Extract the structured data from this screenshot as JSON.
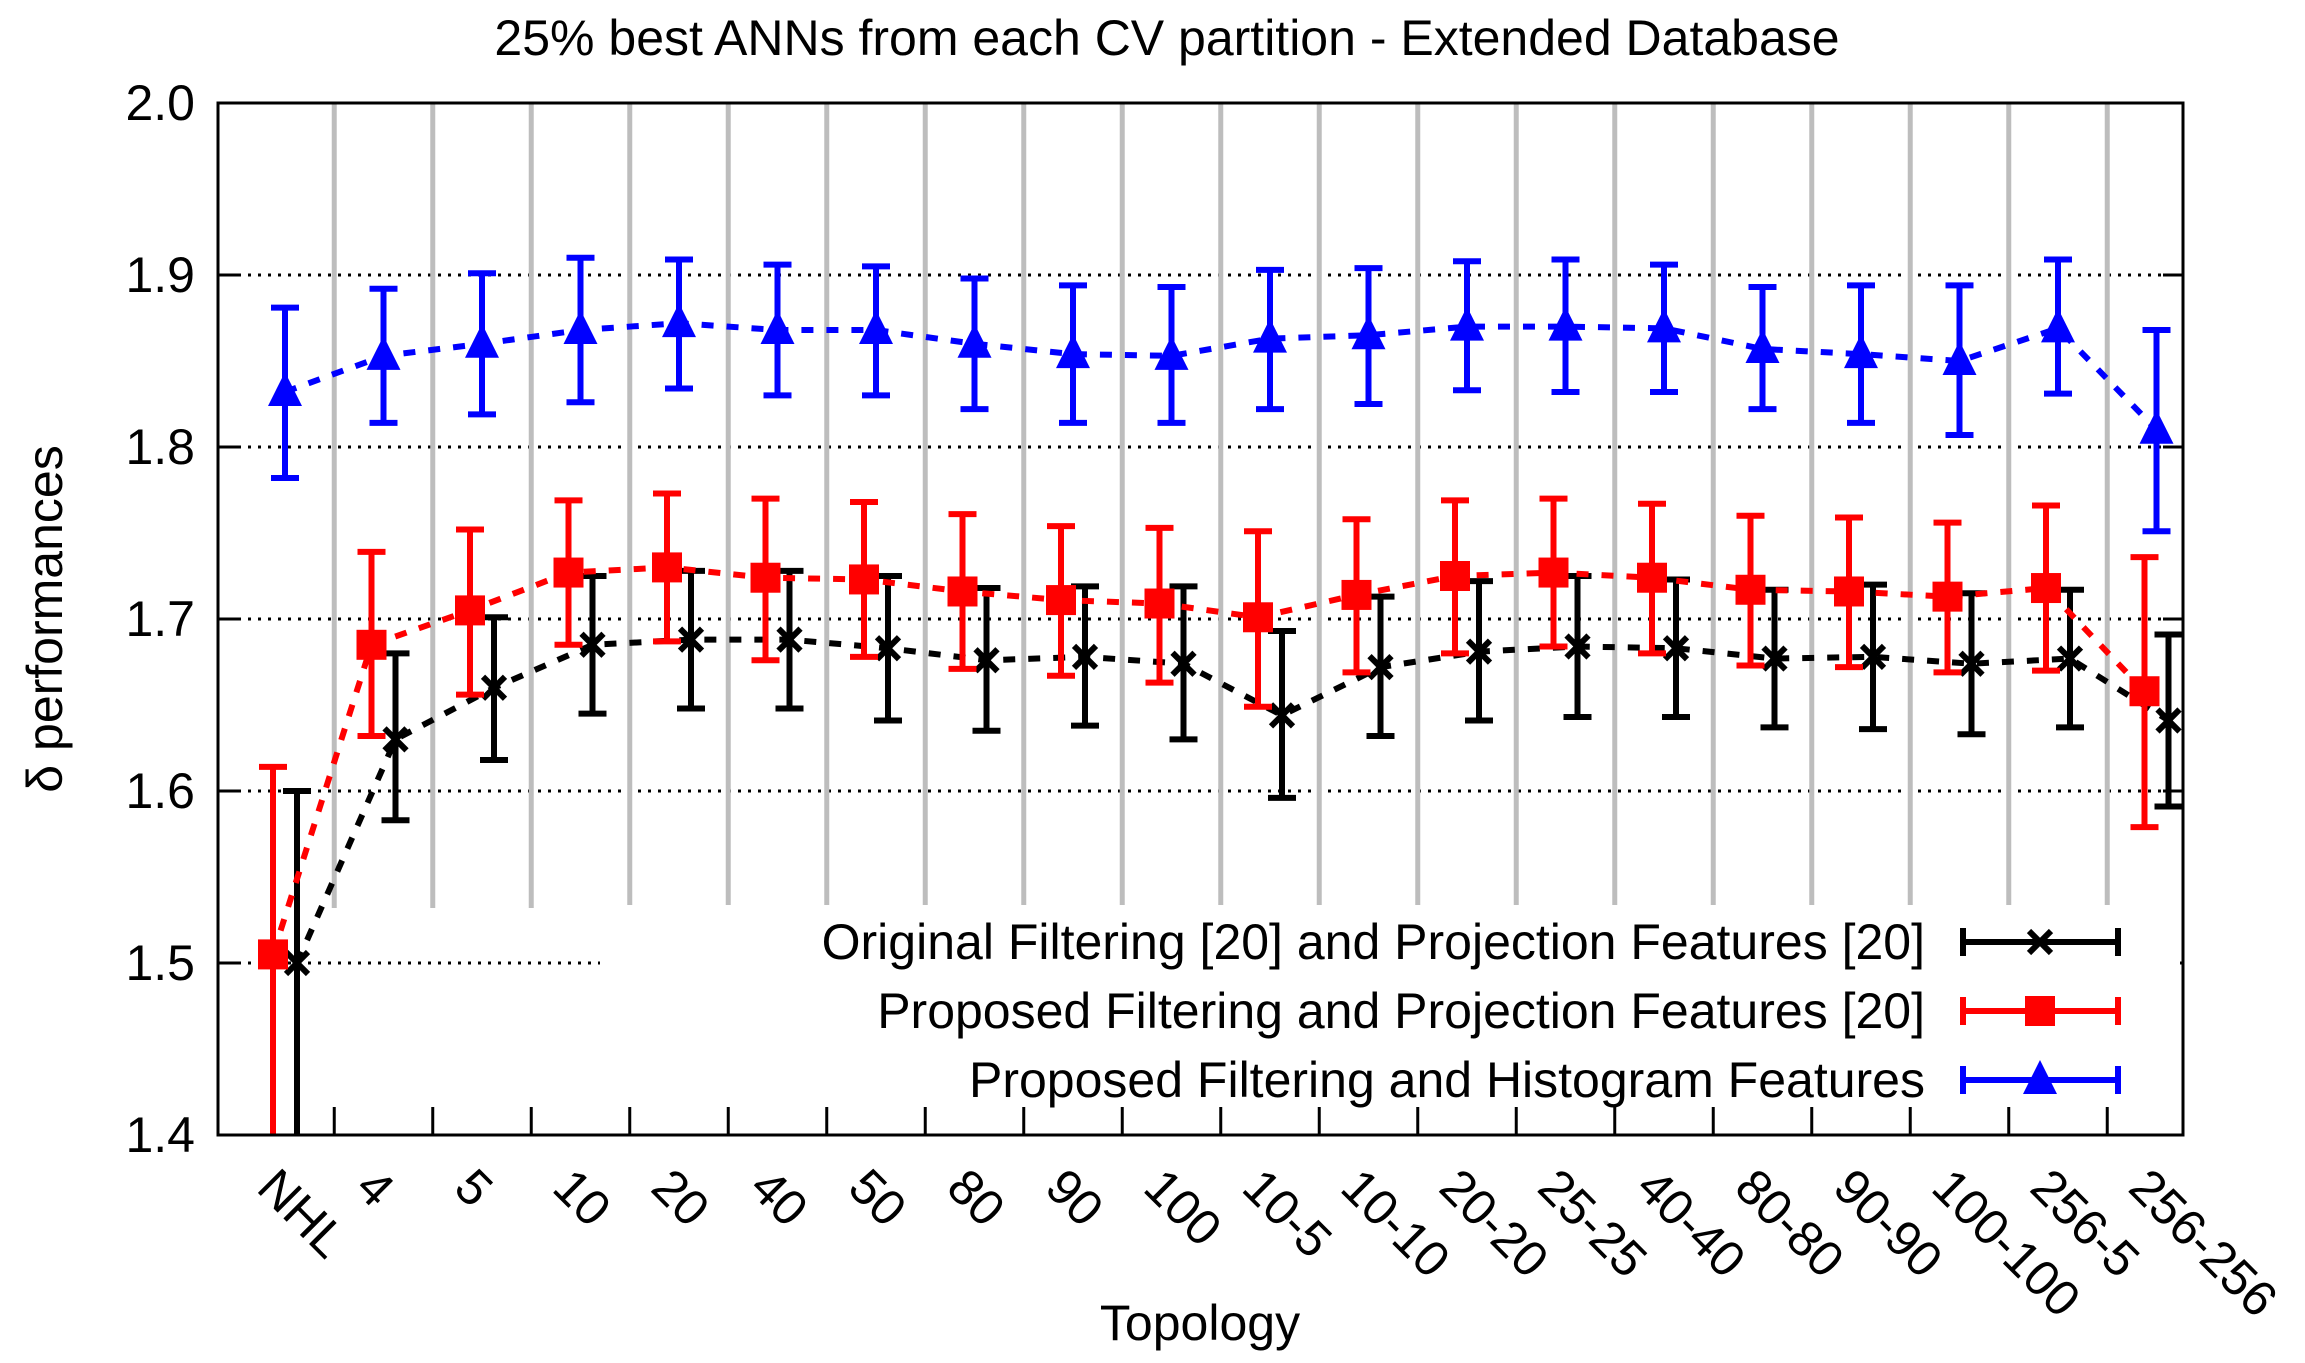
{
  "chart_data": {
    "type": "line",
    "title": "25% best ANNs from each CV partition - Extended Database",
    "xlabel": "Topology",
    "ylabel": "δ performances",
    "ylim": [
      1.4,
      2.0
    ],
    "yticks": [
      "1.4",
      "1.5",
      "1.6",
      "1.7",
      "1.8",
      "1.9",
      "2.0"
    ],
    "grid": "horizontal dotted",
    "legend_position": "bottom-right",
    "categories": [
      "NHL",
      "4",
      "5",
      "10",
      "20",
      "40",
      "50",
      "80",
      "90",
      "100",
      "10-5",
      "10-10",
      "20-20",
      "25-25",
      "40-40",
      "80-80",
      "90-90",
      "100-100",
      "256-5",
      "256-256"
    ],
    "series": [
      {
        "name": "Original Filtering [20] and Projection Features [20]",
        "color": "#000000",
        "marker": "cross",
        "values": [
          1.5,
          1.63,
          1.66,
          1.685,
          1.688,
          1.688,
          1.683,
          1.676,
          1.678,
          1.674,
          1.644,
          1.672,
          1.681,
          1.684,
          1.683,
          1.677,
          1.678,
          1.674,
          1.677,
          1.641
        ],
        "lower": [
          1.4,
          1.583,
          1.618,
          1.645,
          1.648,
          1.648,
          1.641,
          1.635,
          1.638,
          1.63,
          1.596,
          1.632,
          1.641,
          1.643,
          1.643,
          1.637,
          1.636,
          1.633,
          1.637,
          1.591
        ],
        "upper": [
          1.6,
          1.68,
          1.701,
          1.725,
          1.728,
          1.728,
          1.725,
          1.718,
          1.719,
          1.719,
          1.693,
          1.713,
          1.722,
          1.725,
          1.723,
          1.717,
          1.72,
          1.715,
          1.717,
          1.691
        ]
      },
      {
        "name": "Proposed Filtering and Projection Features [20]",
        "color": "#ff0000",
        "marker": "square",
        "values": [
          1.505,
          1.685,
          1.705,
          1.727,
          1.73,
          1.724,
          1.723,
          1.716,
          1.711,
          1.709,
          1.701,
          1.714,
          1.725,
          1.727,
          1.724,
          1.717,
          1.716,
          1.713,
          1.718,
          1.658
        ],
        "lower": [
          1.4,
          1.632,
          1.656,
          1.685,
          1.687,
          1.676,
          1.678,
          1.671,
          1.667,
          1.663,
          1.649,
          1.669,
          1.68,
          1.684,
          1.68,
          1.673,
          1.672,
          1.669,
          1.67,
          1.579
        ],
        "upper": [
          1.614,
          1.739,
          1.752,
          1.769,
          1.773,
          1.77,
          1.768,
          1.761,
          1.754,
          1.753,
          1.751,
          1.758,
          1.769,
          1.77,
          1.767,
          1.76,
          1.759,
          1.756,
          1.766,
          1.736
        ]
      },
      {
        "name": "Proposed Filtering and Histogram Features",
        "color": "#0000ff",
        "marker": "triangle",
        "values": [
          1.832,
          1.853,
          1.86,
          1.868,
          1.872,
          1.868,
          1.868,
          1.86,
          1.854,
          1.853,
          1.863,
          1.865,
          1.87,
          1.87,
          1.869,
          1.857,
          1.854,
          1.85,
          1.869,
          1.81
        ],
        "lower": [
          1.782,
          1.814,
          1.819,
          1.826,
          1.834,
          1.83,
          1.83,
          1.822,
          1.814,
          1.814,
          1.822,
          1.825,
          1.833,
          1.832,
          1.832,
          1.822,
          1.814,
          1.807,
          1.831,
          1.751
        ],
        "upper": [
          1.881,
          1.892,
          1.901,
          1.91,
          1.909,
          1.906,
          1.905,
          1.898,
          1.894,
          1.893,
          1.903,
          1.904,
          1.908,
          1.909,
          1.906,
          1.893,
          1.894,
          1.894,
          1.909,
          1.868
        ]
      }
    ]
  }
}
